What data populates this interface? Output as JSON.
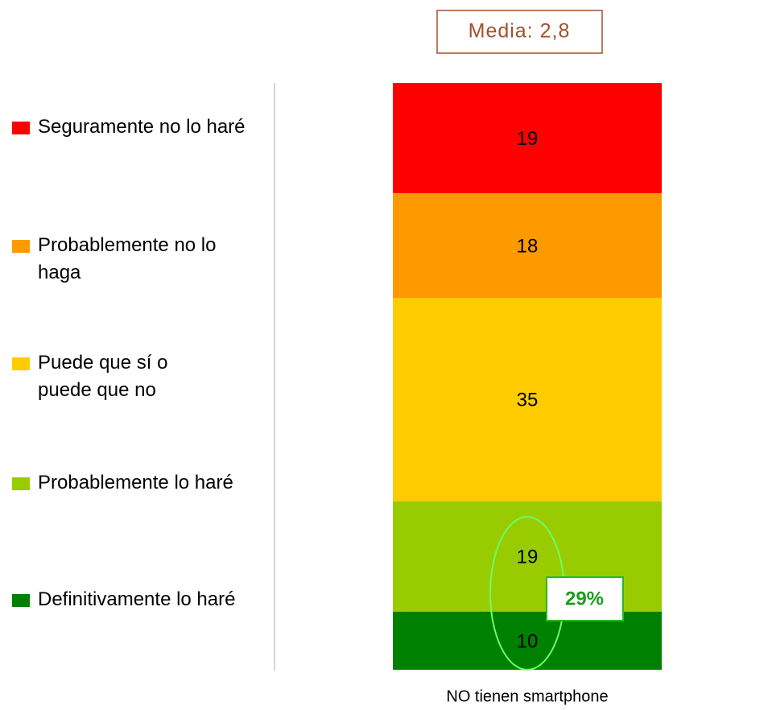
{
  "chart_data": {
    "type": "stacked_bar",
    "categories": [
      "NO tienen smartphone"
    ],
    "series": [
      {
        "name": "Seguramente no lo haré",
        "color": "#ff0000",
        "values": [
          19
        ]
      },
      {
        "name": "Probablemente no lo haga",
        "color": "#ff9900",
        "values": [
          18
        ]
      },
      {
        "name": "Puede que sí o puede que no",
        "color": "#ffcc00",
        "values": [
          35
        ]
      },
      {
        "name": "Probablemente lo haré",
        "color": "#99cc00",
        "values": [
          19
        ]
      },
      {
        "name": "Definitivamente lo haré",
        "color": "#008000",
        "values": [
          10
        ]
      }
    ],
    "annotations": [
      "Media: 2,8",
      "29%"
    ]
  }
}
